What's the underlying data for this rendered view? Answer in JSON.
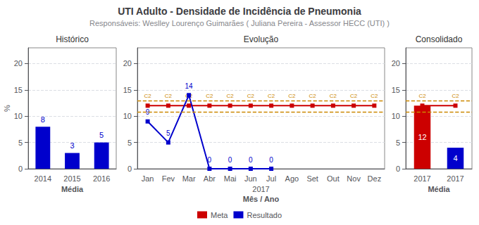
{
  "title": "UTI Adulto - Densidade de Incidência de Pneumonia",
  "subtitle": "Responsáveis: Weslley Lourenço Guimarães ( Juliana Pereira - Assessor HECC (UTI) )",
  "legend": "bottom",
  "chart_data": [
    {
      "type": "bar",
      "title": "Histórico",
      "categories": [
        "2014",
        "2015",
        "2016"
      ],
      "values": [
        8,
        3,
        5
      ],
      "color": "#0000CC",
      "data_labels": true,
      "xlabel": "Média",
      "ylabel": "%",
      "ylim": [
        0,
        23
      ],
      "yticks": [
        0,
        5,
        10,
        15,
        20
      ],
      "grid": true
    },
    {
      "type": "line",
      "title": "Evolução",
      "categories": [
        "Jan",
        "Fev",
        "Mar",
        "Abr",
        "Mai",
        "Jun",
        "Jul",
        "Ago",
        "Set",
        "Out",
        "Nov",
        "Dez"
      ],
      "xlabel": "Mês / Ano",
      "x_sublabel": "2017",
      "series": [
        {
          "name": "Meta",
          "type": "line",
          "color": "#CC0000",
          "marker": "square",
          "values": [
            12,
            12,
            12,
            12,
            12,
            12,
            12,
            12,
            12,
            12,
            12,
            12
          ]
        },
        {
          "name": "Resultado",
          "type": "line",
          "color": "#0000CC",
          "marker": "square",
          "data_labels": true,
          "values": [
            9,
            5,
            14,
            0,
            0,
            0,
            0,
            null,
            null,
            null,
            null,
            null
          ]
        }
      ],
      "reference_lines": [
        {
          "value": 13,
          "color": "#CC8800",
          "line_style": "dashed",
          "label": "C2"
        },
        {
          "value": 10.8,
          "color": "#CC8800",
          "line_style": "dashed"
        }
      ],
      "ylim": [
        0,
        23
      ],
      "yticks": [
        0,
        5,
        10,
        15,
        20
      ],
      "grid": true
    },
    {
      "type": "bar",
      "title": "Consolidado",
      "categories": [
        "2017",
        "2017"
      ],
      "xlabel": "Média",
      "series": [
        {
          "type": "bar",
          "values": [
            12,
            4
          ],
          "colors": [
            "#CC0000",
            "#0000CC"
          ],
          "data_labels": true
        },
        {
          "name": "Meta",
          "type": "line",
          "color": "#CC0000",
          "marker": "square",
          "values": [
            12,
            12
          ]
        }
      ],
      "reference_lines": [
        {
          "value": 13,
          "color": "#CC8800",
          "line_style": "dashed",
          "label": "C2"
        },
        {
          "value": 10.8,
          "color": "#CC8800",
          "line_style": "dashed"
        }
      ],
      "ylim": [
        0,
        23
      ],
      "yticks": [
        0,
        5,
        10,
        15,
        20
      ],
      "grid": true
    }
  ]
}
